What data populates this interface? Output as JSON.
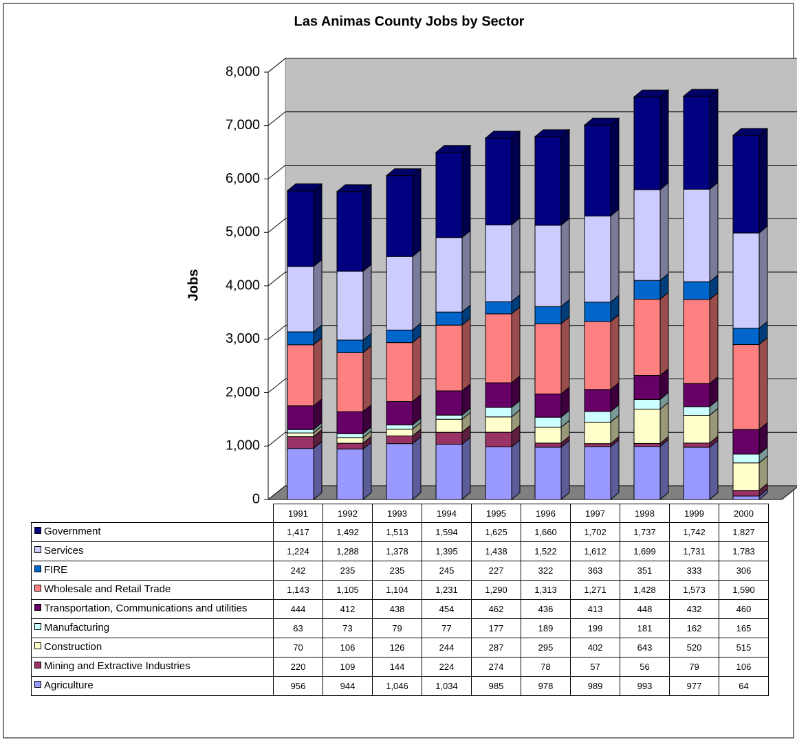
{
  "chart_data": {
    "type": "bar",
    "stacked": true,
    "title": "Las Animas County Jobs by Sector",
    "y_label": "Jobs",
    "categories": [
      "1991",
      "1992",
      "1993",
      "1994",
      "1995",
      "1996",
      "1997",
      "1998",
      "1999",
      "2000"
    ],
    "ylim": [
      0,
      8000
    ],
    "yticks": [
      0,
      {
        "value": 1000,
        "label": "1,000"
      },
      {
        "value": 2000,
        "label": "2,000"
      },
      {
        "value": 3000,
        "label": "3,000"
      },
      {
        "value": 4000,
        "label": "4,000"
      },
      {
        "value": 5000,
        "label": "5,000"
      },
      {
        "value": 6000,
        "label": "6,000"
      },
      {
        "value": 7000,
        "label": "7,000"
      },
      {
        "value": 8000,
        "label": "8,000"
      }
    ],
    "grid": true,
    "series": [
      {
        "name": "Agriculture",
        "color": "#9999ff",
        "values": [
          956,
          944,
          1046,
          1034,
          985,
          978,
          989,
          993,
          977,
          64
        ],
        "value_labels": [
          "956",
          "944",
          "1,046",
          "1,034",
          "985",
          "978",
          "989",
          "993",
          "977",
          "64"
        ]
      },
      {
        "name": "Mining and Extractive Industries",
        "color": "#993366",
        "values": [
          220,
          109,
          144,
          224,
          274,
          78,
          57,
          56,
          79,
          106
        ],
        "value_labels": [
          "220",
          "109",
          "144",
          "224",
          "274",
          "78",
          "57",
          "56",
          "79",
          "106"
        ]
      },
      {
        "name": "Construction",
        "color": "#ffffcc",
        "values": [
          70,
          106,
          126,
          244,
          287,
          295,
          402,
          643,
          520,
          515
        ],
        "value_labels": [
          "70",
          "106",
          "126",
          "244",
          "287",
          "295",
          "402",
          "643",
          "520",
          "515"
        ]
      },
      {
        "name": "Manufacturing",
        "color": "#ccffff",
        "values": [
          63,
          73,
          79,
          77,
          177,
          189,
          199,
          181,
          162,
          165
        ],
        "value_labels": [
          "63",
          "73",
          "79",
          "77",
          "177",
          "189",
          "199",
          "181",
          "162",
          "165"
        ]
      },
      {
        "name": "Transportation, Communications and utilities",
        "color": "#660066",
        "values": [
          444,
          412,
          438,
          454,
          462,
          436,
          413,
          448,
          432,
          460
        ],
        "value_labels": [
          "444",
          "412",
          "438",
          "454",
          "462",
          "436",
          "413",
          "448",
          "432",
          "460"
        ]
      },
      {
        "name": "Wholesale and Retail Trade",
        "color": "#ff8080",
        "values": [
          1143,
          1105,
          1104,
          1231,
          1290,
          1313,
          1271,
          1428,
          1573,
          1590
        ],
        "value_labels": [
          "1,143",
          "1,105",
          "1,104",
          "1,231",
          "1,290",
          "1,313",
          "1,271",
          "1,428",
          "1,573",
          "1,590"
        ]
      },
      {
        "name": "FIRE",
        "color": "#0066cc",
        "values": [
          242,
          235,
          235,
          245,
          227,
          322,
          363,
          351,
          333,
          306
        ],
        "value_labels": [
          "242",
          "235",
          "235",
          "245",
          "227",
          "322",
          "363",
          "351",
          "333",
          "306"
        ]
      },
      {
        "name": "Services",
        "color": "#ccccff",
        "values": [
          1224,
          1288,
          1378,
          1395,
          1438,
          1522,
          1612,
          1699,
          1731,
          1783
        ],
        "value_labels": [
          "1,224",
          "1,288",
          "1,378",
          "1,395",
          "1,438",
          "1,522",
          "1,612",
          "1,699",
          "1,731",
          "1,783"
        ]
      },
      {
        "name": "Government",
        "color": "#000080",
        "values": [
          1417,
          1492,
          1513,
          1594,
          1625,
          1660,
          1702,
          1737,
          1742,
          1827
        ],
        "value_labels": [
          "1,417",
          "1,492",
          "1,513",
          "1,594",
          "1,625",
          "1,660",
          "1,702",
          "1,737",
          "1,742",
          "1,827"
        ]
      }
    ]
  }
}
